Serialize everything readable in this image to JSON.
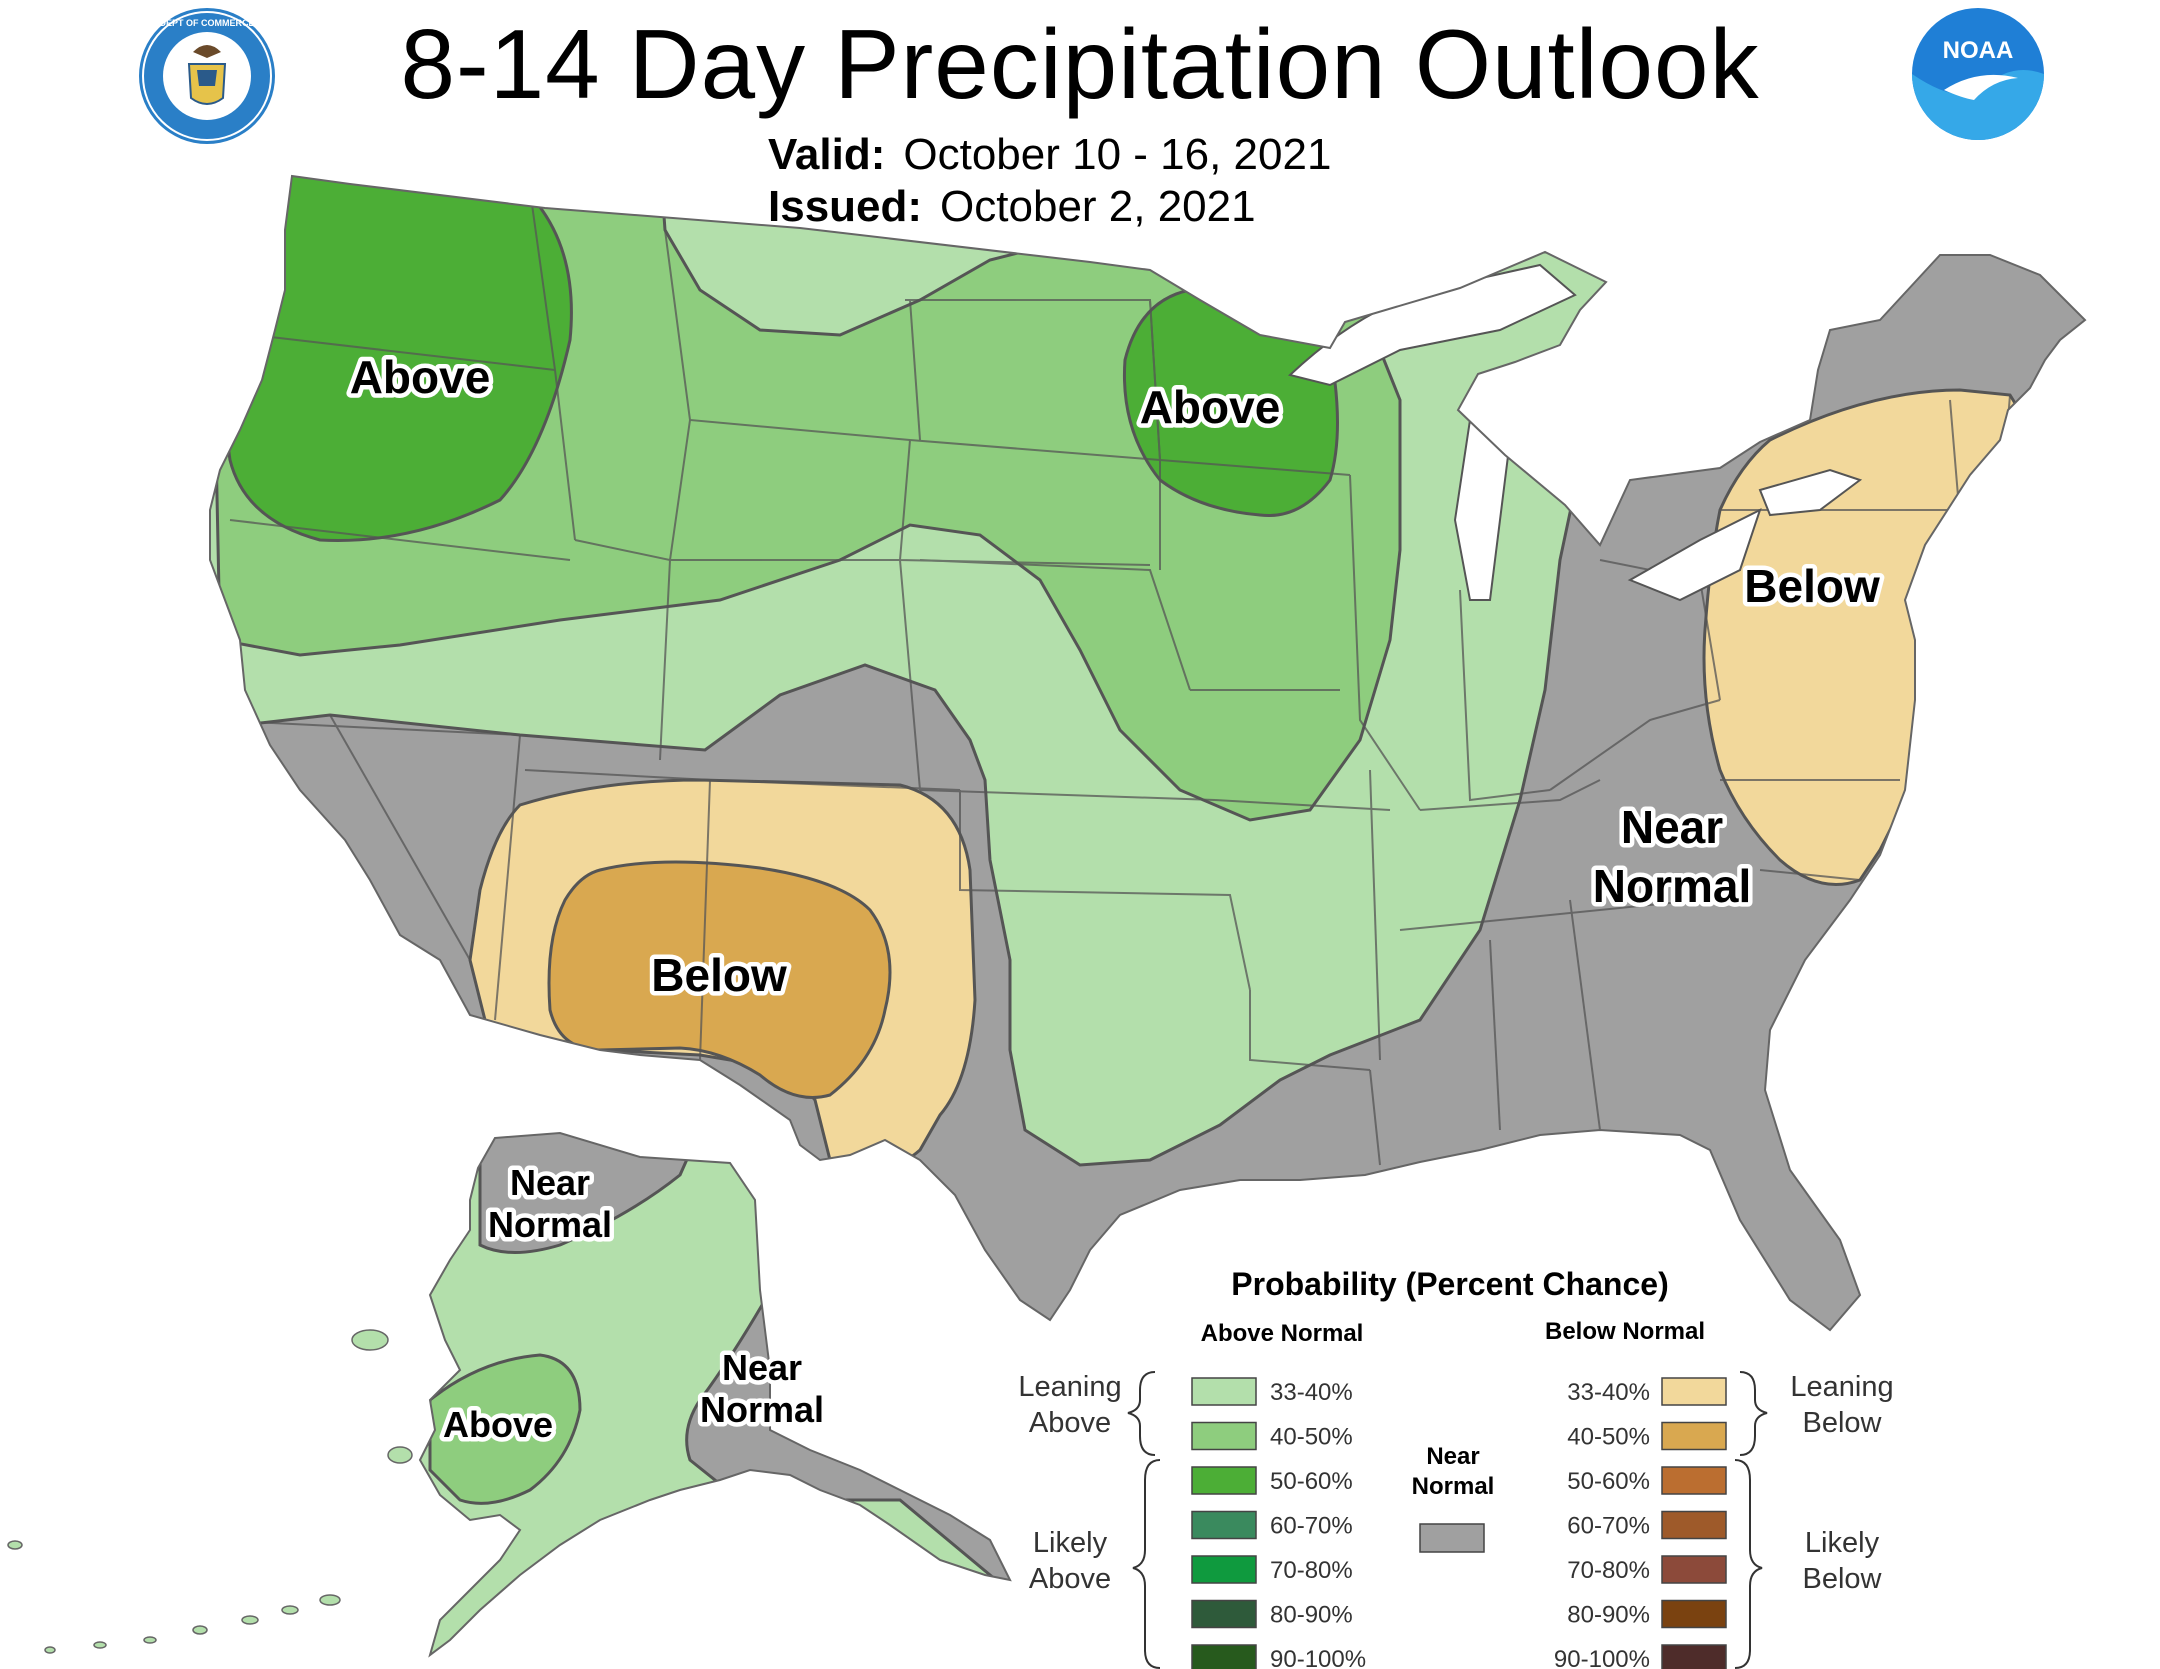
{
  "header": {
    "title": "8-14 Day Precipitation Outlook",
    "valid_label": "Valid:",
    "valid_value": "October 10 - 16, 2021",
    "issued_label": "Issued:",
    "issued_value": "October 2, 2021"
  },
  "logos": {
    "left": "department-of-commerce-seal",
    "left_text": "DEPARTMENT OF COMMERCE · UNITED STATES OF AMERICA",
    "right": "noaa-logo",
    "right_text": "NOAA"
  },
  "regions": {
    "above_northwest": "Above",
    "above_upper_midwest": "Above",
    "below_northeast": "Below",
    "below_southwest": "Below",
    "near_normal_southeast_1": "Near",
    "near_normal_southeast_2": "Normal",
    "alaska_near_normal_north_1": "Near",
    "alaska_near_normal_north_2": "Normal",
    "alaska_near_normal_southeast_1": "Near",
    "alaska_near_normal_southeast_2": "Normal",
    "alaska_above": "Above"
  },
  "legend": {
    "title": "Probability (Percent Chance)",
    "above_header": "Above Normal",
    "below_header": "Below Normal",
    "leaning_above_1": "Leaning",
    "leaning_above_2": "Above",
    "likely_above_1": "Likely",
    "likely_above_2": "Above",
    "leaning_below_1": "Leaning",
    "leaning_below_2": "Below",
    "likely_below_1": "Likely",
    "likely_below_2": "Below",
    "near_1": "Near",
    "near_2": "Normal",
    "above": [
      {
        "label": "33-40%",
        "color": "#b3dfab"
      },
      {
        "label": "40-50%",
        "color": "#8ecd7e"
      },
      {
        "label": "50-60%",
        "color": "#4cae36"
      },
      {
        "label": "60-70%",
        "color": "#3a8a5e"
      },
      {
        "label": "70-80%",
        "color": "#0f9a3e"
      },
      {
        "label": "80-90%",
        "color": "#2e5a3a"
      },
      {
        "label": "90-100%",
        "color": "#275a1d"
      }
    ],
    "below": [
      {
        "label": "33-40%",
        "color": "#f2d89b"
      },
      {
        "label": "40-50%",
        "color": "#d9a850"
      },
      {
        "label": "50-60%",
        "color": "#bb6e30"
      },
      {
        "label": "60-70%",
        "color": "#9e5a2a"
      },
      {
        "label": "70-80%",
        "color": "#8c4a3a"
      },
      {
        "label": "80-90%",
        "color": "#7a4210"
      },
      {
        "label": "90-100%",
        "color": "#4e2c2a"
      }
    ],
    "near_color": "#a0a0a0"
  },
  "colors": {
    "near_normal": "#a0a0a0",
    "above_33_40": "#b3dfab",
    "above_40_50": "#8ecd7e",
    "above_50_60": "#4cae36",
    "below_33_40": "#f2d89b",
    "below_40_50": "#d9a850"
  }
}
